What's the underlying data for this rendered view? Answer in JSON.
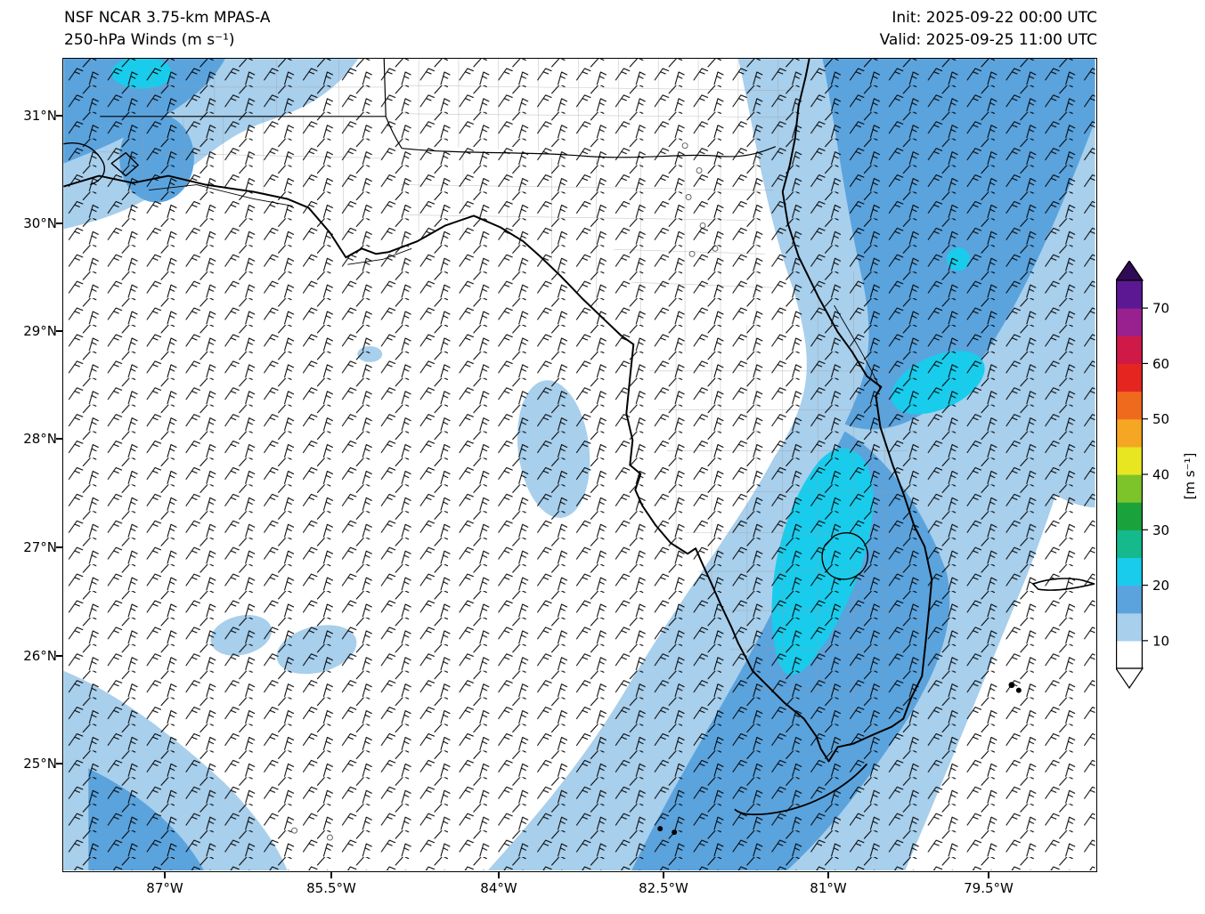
{
  "chart_data": {
    "type": "heatmap",
    "title": "NSF NCAR 3.75-km MPAS-A",
    "subtitle": "250-hPa Winds (m s⁻¹)",
    "init_label": "Init: 2025-09-22 00:00 UTC",
    "valid_label": "Valid: 2025-09-25 11:00 UTC",
    "x_ticks": [
      "87°W",
      "85.5°W",
      "84°W",
      "82.5°W",
      "81°W",
      "79.5°W"
    ],
    "y_ticks": [
      "31°N",
      "30°N",
      "29°N",
      "28°N",
      "27°N",
      "26°N",
      "25°N"
    ],
    "colorbar": {
      "label": "[m s⁻¹]",
      "tick_values": [
        10,
        20,
        30,
        40,
        50,
        60,
        70
      ],
      "value_min": 5,
      "value_max": 75,
      "segment_step": 5,
      "segment_colors_bottom_to_top": [
        "#ffffff",
        "#a8cfec",
        "#5ba3dd",
        "#19ccec",
        "#14b98c",
        "#1aa33c",
        "#7dc42a",
        "#e8e621",
        "#f5a623",
        "#f06a1d",
        "#e52620",
        "#cf1a47",
        "#99218f",
        "#5c1793"
      ],
      "under_arrow_color": "#ffffff",
      "over_arrow_color": "#2f0a56"
    },
    "overlay": "wind barbs plotted on a regular grid across the full domain",
    "shaded_regions": [
      {
        "region": "SW–NE swath over the Atlantic and eastern/southern Florida",
        "wind_speed_m_s": "10–20"
      },
      {
        "region": "Core over the central-south Florida peninsula",
        "wind_speed_m_s": "20–25"
      },
      {
        "region": "Northwest corner near the Gulf coast",
        "wind_speed_m_s": "10–25"
      },
      {
        "region": "Scattered patches over the eastern Gulf and southwest corner",
        "wind_speed_m_s": "10–15"
      },
      {
        "region": "Remainder of the Gulf of Mexico and panhandle interior",
        "wind_speed_m_s": "< 10"
      }
    ],
    "geography": "Florida peninsula, panhandle, southern Georgia/Alabama, Florida Keys, northwest Bahamas"
  }
}
